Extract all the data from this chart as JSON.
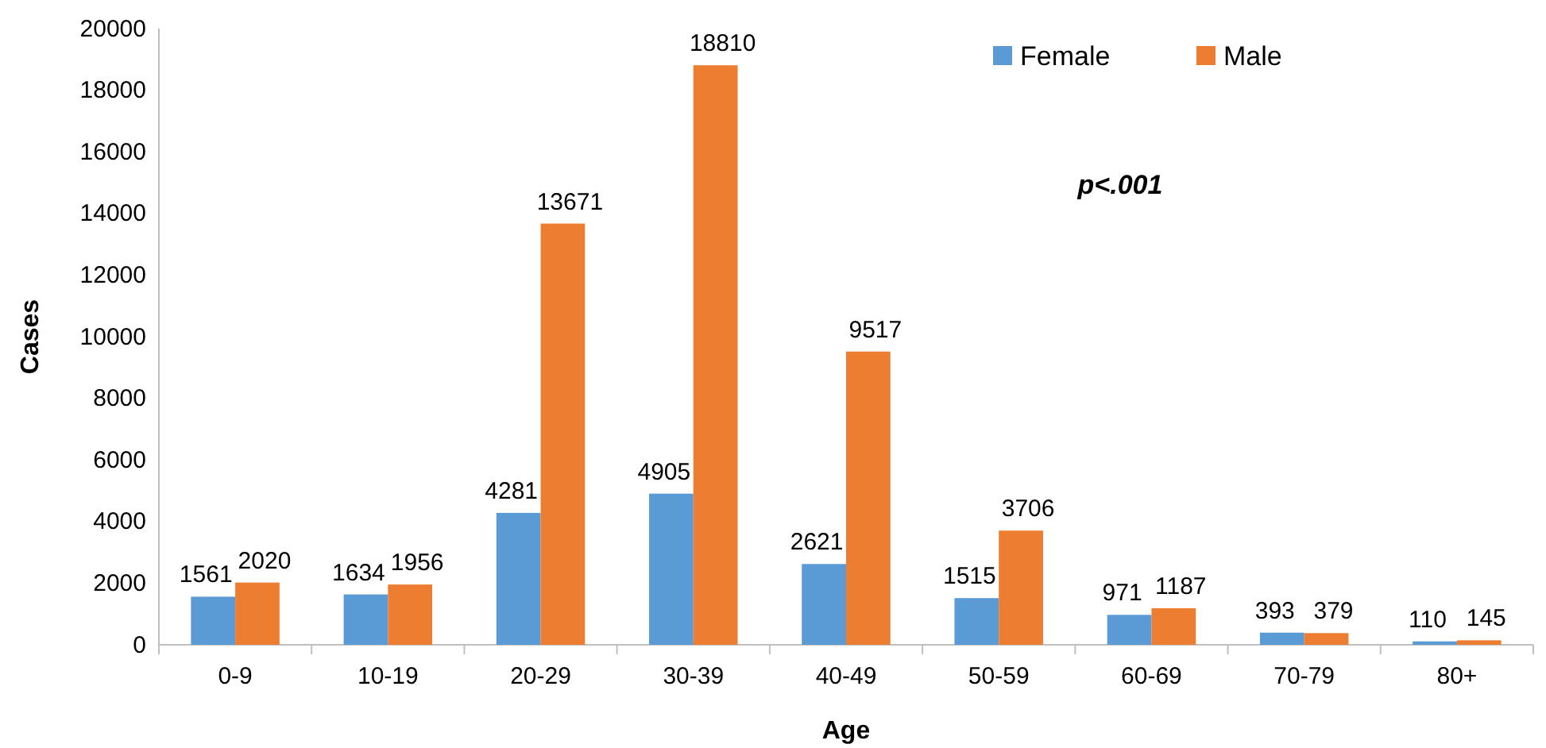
{
  "chart_data": {
    "type": "bar",
    "xlabel": "Age",
    "ylabel": "Cases",
    "categories": [
      "0-9",
      "10-19",
      "20-29",
      "30-39",
      "40-49",
      "50-59",
      "60-69",
      "70-79",
      "80+"
    ],
    "series": [
      {
        "name": "Female",
        "color": "#5b9bd5",
        "values": [
          1561,
          1634,
          4281,
          4905,
          2621,
          1515,
          971,
          393,
          110
        ]
      },
      {
        "name": "Male",
        "color": "#ed7d31",
        "values": [
          2020,
          1956,
          13671,
          18810,
          9517,
          3706,
          1187,
          379,
          145
        ]
      }
    ],
    "ylim": [
      0,
      20000
    ],
    "yticks": [
      0,
      2000,
      4000,
      6000,
      8000,
      10000,
      12000,
      14000,
      16000,
      18000,
      20000
    ],
    "grid": false,
    "legend": "top right",
    "data_labels": true,
    "annotations": [
      "p<.001"
    ]
  }
}
